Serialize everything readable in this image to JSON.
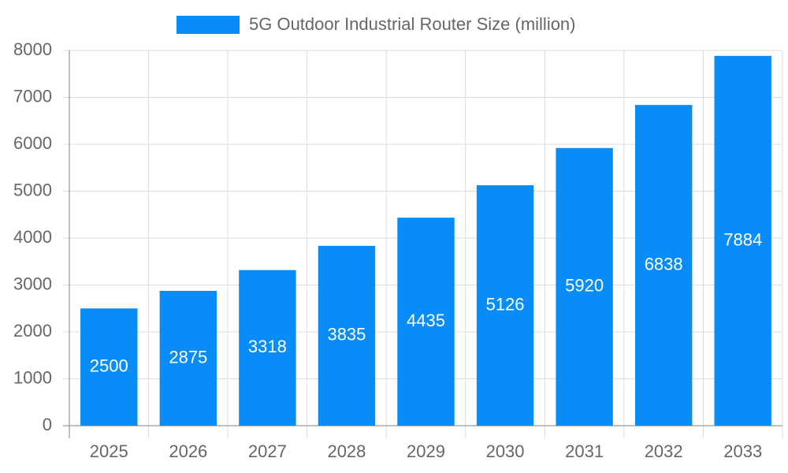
{
  "chart_data": {
    "type": "bar",
    "categories": [
      "2025",
      "2026",
      "2027",
      "2028",
      "2029",
      "2030",
      "2031",
      "2032",
      "2033"
    ],
    "series": [
      {
        "name": "5G Outdoor Industrial Router Size (million)",
        "color": "#078cf8",
        "values": [
          2500,
          2875,
          3318,
          3835,
          4435,
          5126,
          5920,
          6838,
          7884
        ]
      }
    ],
    "ylim": [
      0,
      8000
    ],
    "yticks": [
      0,
      1000,
      2000,
      3000,
      4000,
      5000,
      6000,
      7000,
      8000
    ],
    "grid": true,
    "legend": "top",
    "data_labels": true
  }
}
